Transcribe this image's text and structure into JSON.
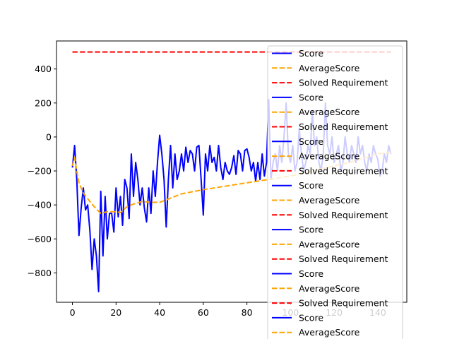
{
  "chart_data": {
    "type": "line",
    "title": "",
    "xlabel": "",
    "ylabel": "",
    "xlim": [
      -7.3,
      153.3
    ],
    "ylim": [
      -973,
      565
    ],
    "x_ticks": [
      0,
      20,
      40,
      60,
      80,
      100,
      120,
      140
    ],
    "x_tick_labels": [
      "0",
      "20",
      "40",
      "60",
      "80",
      "100",
      "120",
      "140"
    ],
    "y_ticks": [
      -800,
      -600,
      -400,
      -200,
      0,
      200,
      400
    ],
    "y_tick_labels": [
      "−800",
      "−600",
      "−400",
      "−200",
      "0",
      "200",
      "400"
    ],
    "grid": false,
    "legend": {
      "placement": "upper-right",
      "entries": [
        {
          "label": "Score",
          "color": "#0000ff",
          "style": "solid"
        },
        {
          "label": "AverageScore",
          "color": "#ffa500",
          "style": "dashed"
        },
        {
          "label": "Solved Requirement",
          "color": "#ff0000",
          "style": "dashed"
        },
        {
          "label": "Score",
          "color": "#0000ff",
          "style": "solid"
        },
        {
          "label": "AverageScore",
          "color": "#ffa500",
          "style": "dashed"
        },
        {
          "label": "Solved Requirement",
          "color": "#ff0000",
          "style": "dashed"
        },
        {
          "label": "Score",
          "color": "#0000ff",
          "style": "solid"
        },
        {
          "label": "AverageScore",
          "color": "#ffa500",
          "style": "dashed"
        },
        {
          "label": "Solved Requirement",
          "color": "#ff0000",
          "style": "dashed"
        },
        {
          "label": "Score",
          "color": "#0000ff",
          "style": "solid"
        },
        {
          "label": "AverageScore",
          "color": "#ffa500",
          "style": "dashed"
        },
        {
          "label": "Solved Requirement",
          "color": "#ff0000",
          "style": "dashed"
        },
        {
          "label": "Score",
          "color": "#0000ff",
          "style": "solid"
        },
        {
          "label": "AverageScore",
          "color": "#ffa500",
          "style": "dashed"
        },
        {
          "label": "Solved Requirement",
          "color": "#ff0000",
          "style": "dashed"
        },
        {
          "label": "Score",
          "color": "#0000ff",
          "style": "solid"
        },
        {
          "label": "AverageScore",
          "color": "#ffa500",
          "style": "dashed"
        },
        {
          "label": "Solved Requirement",
          "color": "#ff0000",
          "style": "dashed"
        },
        {
          "label": "Score",
          "color": "#0000ff",
          "style": "solid"
        },
        {
          "label": "AverageScore",
          "color": "#ffa500",
          "style": "dashed"
        }
      ]
    },
    "series": [
      {
        "name": "Score",
        "color": "#0000ff",
        "style": "solid",
        "x": [
          0,
          1,
          2,
          3,
          4,
          5,
          6,
          7,
          8,
          9,
          10,
          11,
          12,
          13,
          14,
          15,
          16,
          17,
          18,
          19,
          20,
          21,
          22,
          23,
          24,
          25,
          26,
          27,
          28,
          29,
          30,
          31,
          32,
          33,
          34,
          35,
          36,
          37,
          38,
          39,
          40,
          41,
          42,
          43,
          44,
          45,
          46,
          47,
          48,
          49,
          50,
          51,
          52,
          53,
          54,
          55,
          56,
          57,
          58,
          59,
          60,
          61,
          62,
          63,
          64,
          65,
          66,
          67,
          68,
          69,
          70,
          71,
          72,
          73,
          74,
          75,
          76,
          77,
          78,
          79,
          80,
          81,
          82,
          83,
          84,
          85,
          86,
          87,
          88,
          89,
          90,
          91,
          92,
          93,
          94,
          95,
          96,
          97,
          98,
          99,
          100,
          101,
          102,
          103,
          104,
          105,
          106,
          107,
          108,
          109,
          110,
          111,
          112,
          113,
          114,
          115,
          116,
          117,
          118,
          119,
          120,
          121,
          122,
          123,
          124,
          125,
          126,
          127,
          128,
          129,
          130,
          131,
          132,
          133,
          134,
          135,
          136,
          137,
          138,
          139,
          140,
          141,
          142,
          143,
          144,
          145,
          146
        ],
        "values": [
          -180,
          -50,
          -250,
          -580,
          -420,
          -300,
          -430,
          -400,
          -550,
          -780,
          -600,
          -700,
          -910,
          -320,
          -700,
          -350,
          -600,
          -450,
          -450,
          -560,
          -300,
          -470,
          -350,
          -520,
          -250,
          -300,
          -480,
          -100,
          -350,
          -150,
          -250,
          -400,
          -300,
          -420,
          -500,
          -300,
          -450,
          -200,
          -350,
          -150,
          10,
          -100,
          -250,
          -530,
          -250,
          -50,
          -300,
          -100,
          -250,
          -200,
          -100,
          -200,
          -60,
          -150,
          -80,
          -100,
          -200,
          -60,
          -50,
          -250,
          -460,
          -100,
          -200,
          -50,
          -150,
          -120,
          -200,
          -50,
          -180,
          -250,
          -150,
          -200,
          -220,
          -180,
          -110,
          -220,
          -80,
          -100,
          -200,
          -80,
          -70,
          -120,
          -200,
          -150,
          -260,
          -150,
          -250,
          -100,
          -230,
          -150,
          220,
          -250,
          -150,
          -100,
          -200,
          -50,
          -150,
          0,
          200,
          -100,
          -150,
          -50,
          -200,
          -150,
          50,
          -100,
          -200,
          -150,
          -50,
          -100,
          150,
          -50,
          0,
          -150,
          -200,
          -100,
          200,
          -50,
          -100,
          0,
          -150,
          -100,
          -50,
          -200,
          -150,
          0,
          -100,
          -150,
          -50,
          -100,
          -150,
          0,
          -100,
          -50,
          -150,
          -200,
          -100,
          -150,
          -50,
          -100,
          -130,
          -230,
          -200,
          -100,
          -150,
          -50,
          -100
        ]
      },
      {
        "name": "AverageScore",
        "color": "#ffa500",
        "style": "dashed",
        "x": [
          0,
          1,
          2,
          3,
          5,
          8,
          10,
          13,
          16,
          20,
          22,
          25,
          28,
          32,
          36,
          40,
          45,
          50,
          60,
          70,
          80,
          90,
          100,
          110,
          120,
          130,
          140,
          146
        ],
        "values": [
          -170,
          -120,
          -200,
          -270,
          -330,
          -380,
          -410,
          -450,
          -440,
          -440,
          -445,
          -410,
          -395,
          -380,
          -385,
          -385,
          -360,
          -335,
          -310,
          -290,
          -270,
          -250,
          -230,
          -200,
          -170,
          -140,
          -100,
          -90
        ]
      },
      {
        "name": "Solved Requirement",
        "color": "#ff0000",
        "style": "dashed",
        "x": [
          0,
          146
        ],
        "values": [
          500,
          500
        ]
      }
    ]
  }
}
